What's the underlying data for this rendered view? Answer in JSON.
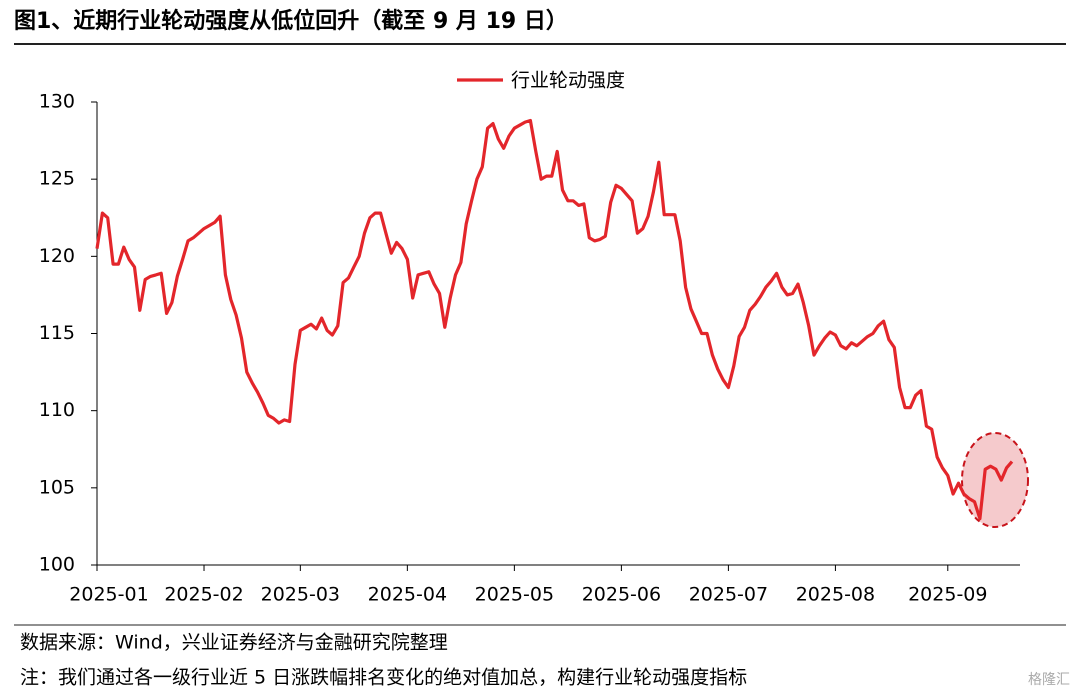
{
  "chart_data": {
    "type": "line",
    "title": "图1、近期行业轮动强度从低位回升（截至 9 月 19 日）",
    "source": "数据来源：Wind，兴业证券经济与金融研究院整理",
    "note": "注：我们通过各一级行业近 5 日涨跌幅排名变化的绝对值加总，构建行业轮动强度指标",
    "watermark": "格隆汇",
    "legend": "top",
    "ylim": [
      100,
      130
    ],
    "yticks": [
      100,
      105,
      110,
      115,
      120,
      125,
      130
    ],
    "categories": [
      "2025-01",
      null,
      null,
      null,
      null,
      null,
      null,
      null,
      null,
      null,
      null,
      null,
      null,
      null,
      null,
      null,
      null,
      null,
      null,
      null,
      "2025-02",
      null,
      null,
      null,
      null,
      null,
      null,
      null,
      null,
      null,
      null,
      null,
      null,
      null,
      null,
      null,
      null,
      null,
      "2025-03",
      null,
      null,
      null,
      null,
      null,
      null,
      null,
      null,
      null,
      null,
      null,
      null,
      null,
      null,
      null,
      null,
      null,
      null,
      null,
      "2025-04",
      null,
      null,
      null,
      null,
      null,
      null,
      null,
      null,
      null,
      null,
      null,
      null,
      null,
      null,
      null,
      null,
      null,
      null,
      null,
      "2025-05",
      null,
      null,
      null,
      null,
      null,
      null,
      null,
      null,
      null,
      null,
      null,
      null,
      null,
      null,
      null,
      null,
      null,
      null,
      null,
      "2025-06",
      null,
      null,
      null,
      null,
      null,
      null,
      null,
      null,
      null,
      null,
      null,
      null,
      null,
      null,
      null,
      null,
      null,
      null,
      null,
      "2025-07",
      null,
      null,
      null,
      null,
      null,
      null,
      null,
      null,
      null,
      null,
      null,
      null,
      null,
      null,
      null,
      null,
      null,
      null,
      null,
      "2025-08",
      null,
      null,
      null,
      null,
      null,
      null,
      null,
      null,
      null,
      null,
      null,
      null,
      null,
      null,
      null,
      null,
      null,
      null,
      null,
      null,
      "2025-09",
      null,
      null,
      null,
      null,
      null,
      null,
      null,
      null,
      null,
      null,
      null,
      null
    ],
    "series": [
      {
        "name": "行业轮动强度",
        "color": "#e3262b",
        "values": [
          120.5,
          122.8,
          122.5,
          119.5,
          119.5,
          120.6,
          119.8,
          119.3,
          116.5,
          118.5,
          118.7,
          118.8,
          118.9,
          116.3,
          117.0,
          118.7,
          119.8,
          121.0,
          121.2,
          121.5,
          121.8,
          122.0,
          122.2,
          122.6,
          118.8,
          117.2,
          116.2,
          114.7,
          112.5,
          111.8,
          111.2,
          110.5,
          109.7,
          109.5,
          109.2,
          109.4,
          109.3,
          113.0,
          115.2,
          115.4,
          115.6,
          115.3,
          116.0,
          115.2,
          114.9,
          115.5,
          118.3,
          118.6,
          119.3,
          120.0,
          121.5,
          122.5,
          122.8,
          122.8,
          121.5,
          120.2,
          120.9,
          120.5,
          119.8,
          117.3,
          118.8,
          118.9,
          119.0,
          118.2,
          117.6,
          115.4,
          117.3,
          118.8,
          119.6,
          122.1,
          123.6,
          125.0,
          125.8,
          128.3,
          128.6,
          127.6,
          127.0,
          127.8,
          128.3,
          128.5,
          128.7,
          128.8,
          126.8,
          125.0,
          125.2,
          125.2,
          126.8,
          124.3,
          123.6,
          123.6,
          123.3,
          123.4,
          121.2,
          121.0,
          121.1,
          121.3,
          123.5,
          124.6,
          124.4,
          124.0,
          123.6,
          121.5,
          121.8,
          122.6,
          124.2,
          126.1,
          122.7,
          122.7,
          122.7,
          121.0,
          118.0,
          116.6,
          115.8,
          115.0,
          115.0,
          113.6,
          112.7,
          112.0,
          111.5,
          112.9,
          114.8,
          115.4,
          116.5,
          116.9,
          117.4,
          118.0,
          118.4,
          118.9,
          118.0,
          117.5,
          117.6,
          118.2,
          117.0,
          115.5,
          113.6,
          114.2,
          114.7,
          115.1,
          114.9,
          114.2,
          114.0,
          114.4,
          114.2,
          114.5,
          114.8,
          115.0,
          115.5,
          115.8,
          114.6,
          114.1,
          111.5,
          110.2,
          110.2,
          111.0,
          111.3,
          109.0,
          108.8,
          107.0,
          106.3,
          105.8,
          104.6,
          105.3,
          104.6,
          104.3,
          104.1,
          103.0,
          106.2,
          106.4,
          106.2,
          105.5,
          106.3,
          106.7
        ]
      }
    ]
  }
}
